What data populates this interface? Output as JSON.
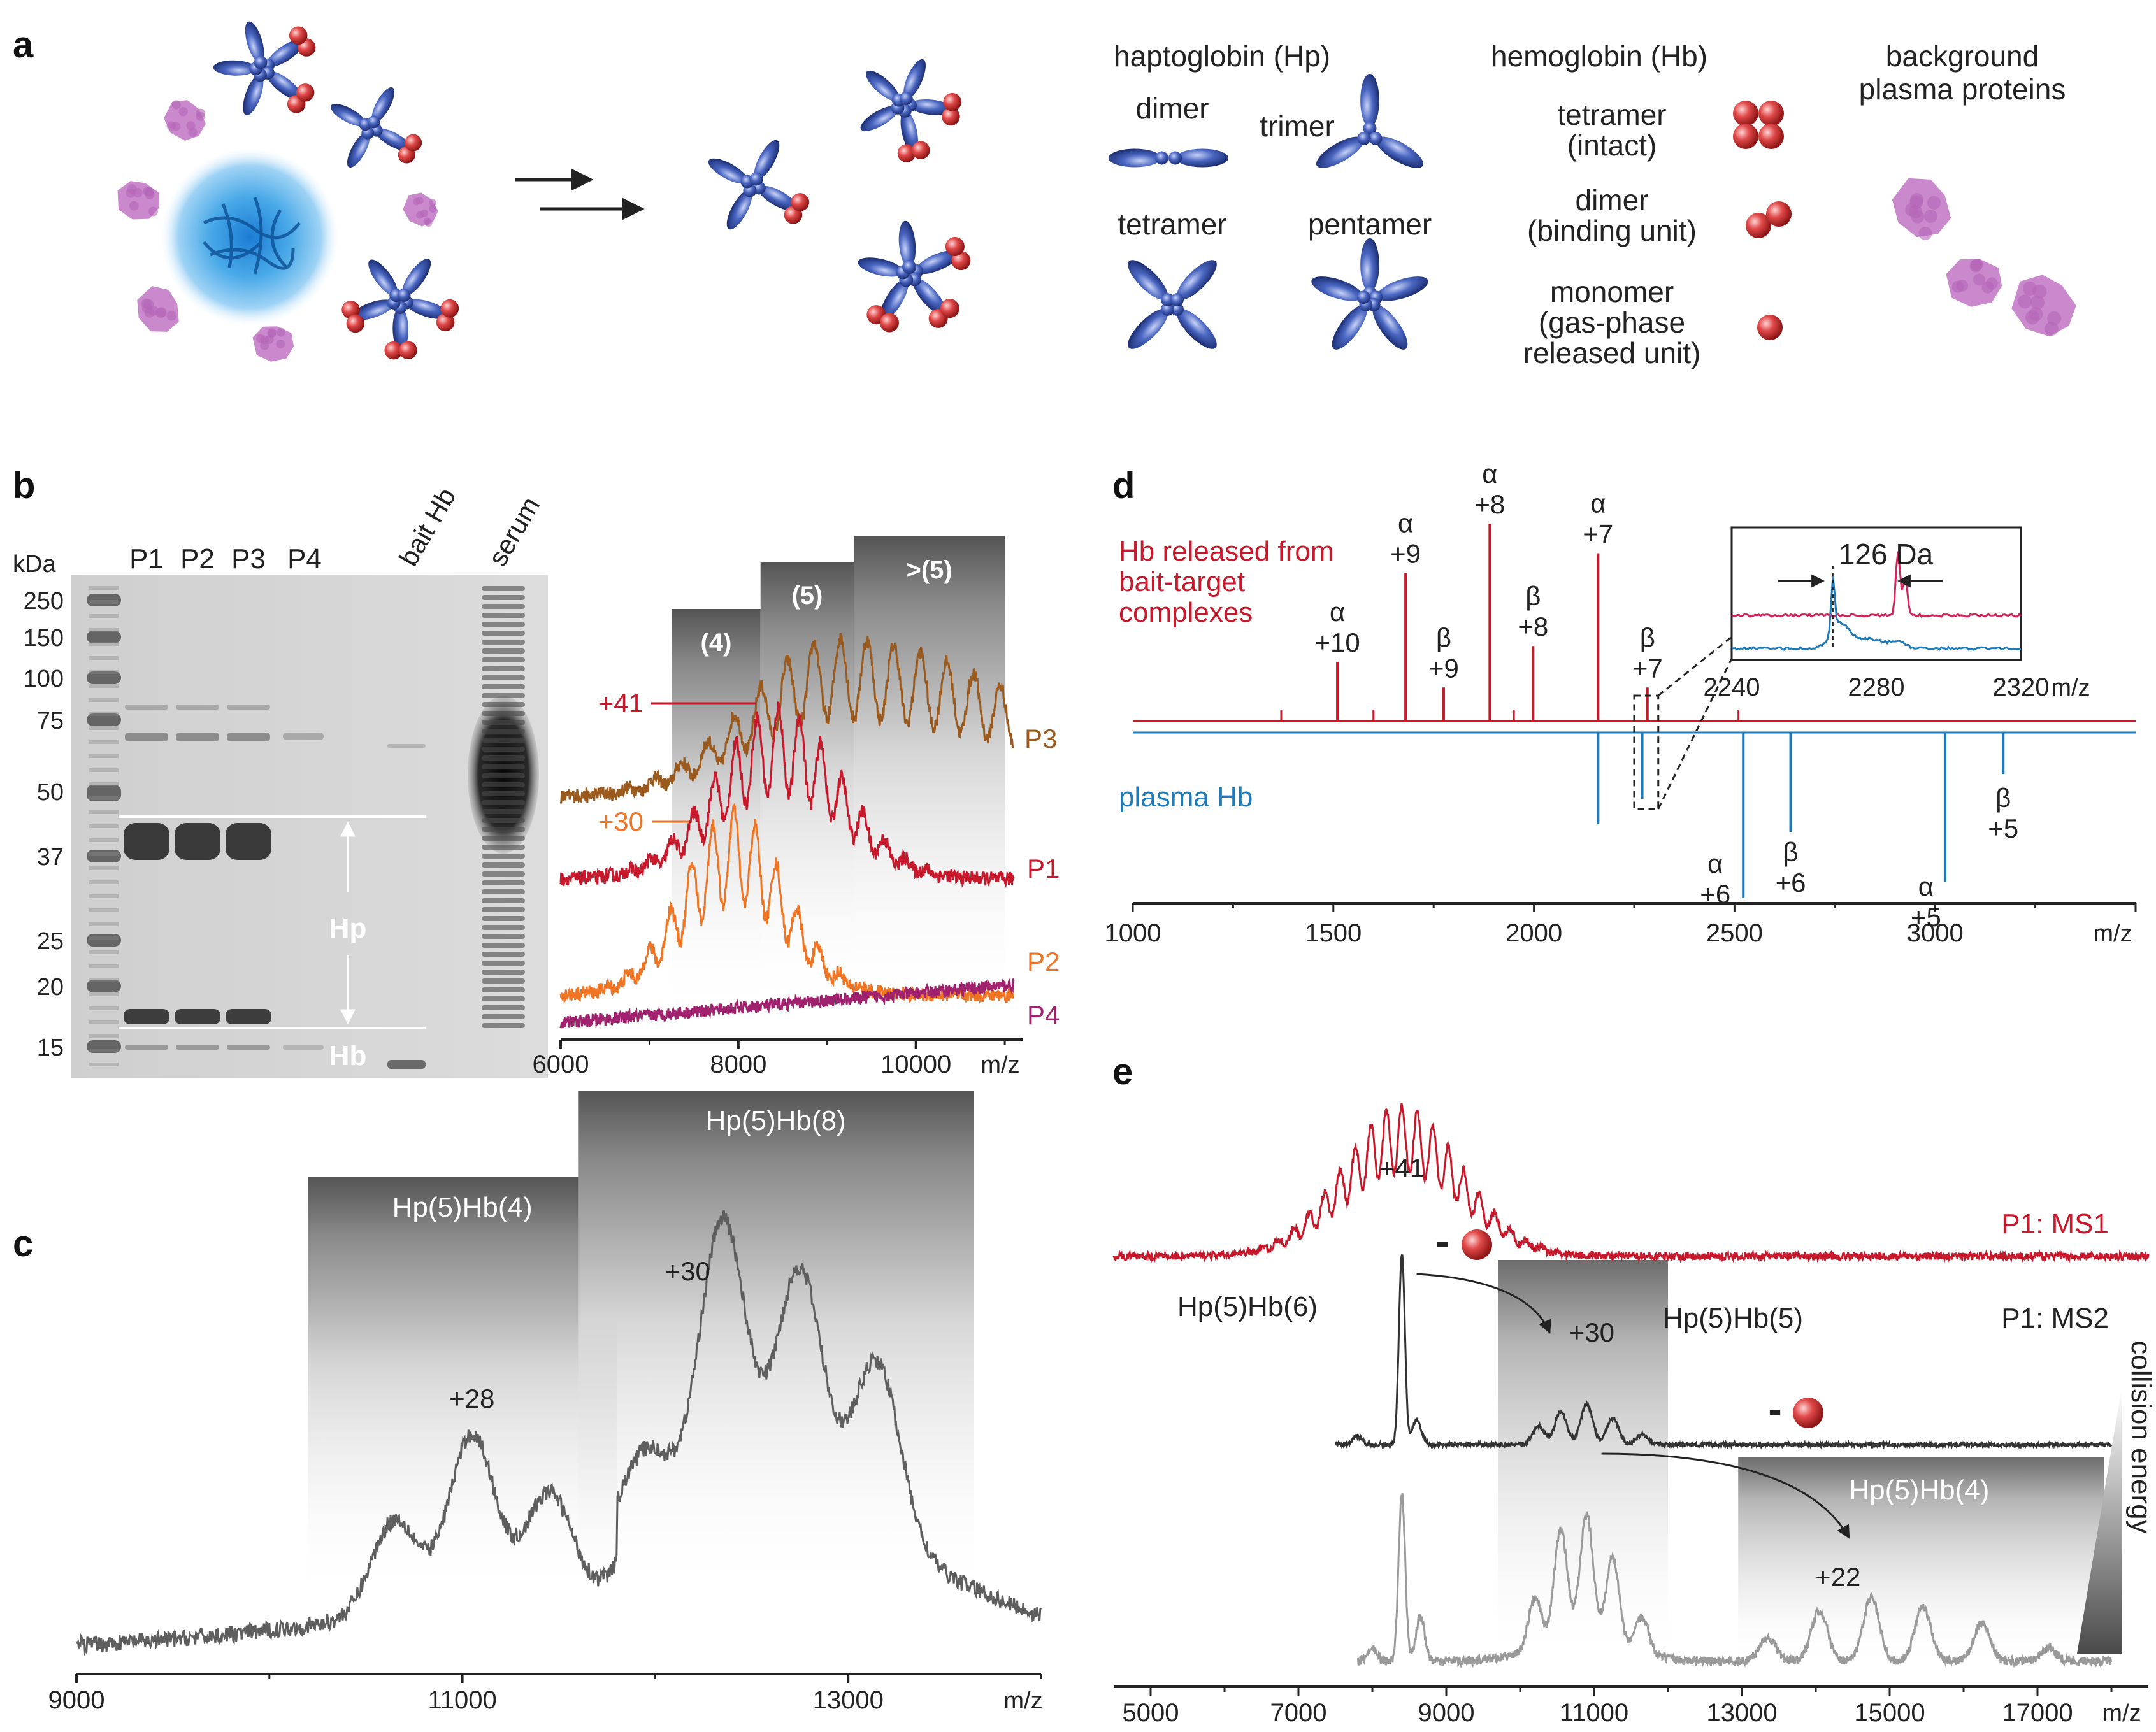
{
  "panel_letters": {
    "a": "a",
    "b": "b",
    "c": "c",
    "d": "d",
    "e": "e"
  },
  "panel_a": {
    "hp_header": "haptoglobin (Hp)",
    "hb_header": "hemoglobin (Hb)",
    "bg_header": [
      "background",
      "plasma proteins"
    ],
    "dimer": "dimer",
    "trimer": "trimer",
    "tetramer": "tetramer",
    "pentamer": "pentamer",
    "hb_tetramer": [
      "tetramer",
      "(intact)"
    ],
    "hb_dimer": [
      "dimer",
      "(binding unit)"
    ],
    "hb_monomer": [
      "monomer",
      "(gas-phase",
      "released unit)"
    ]
  },
  "gel": {
    "unit": "kDa",
    "markers": [
      "250",
      "150",
      "100",
      "75",
      "50",
      "37",
      "25",
      "20",
      "15"
    ],
    "lanes": [
      "P1",
      "P2",
      "P3",
      "P4",
      "bait Hb",
      "serum"
    ],
    "hp_label": "Hp",
    "hb_label": "Hb"
  },
  "colors": {
    "P1": "#c8182b",
    "P2": "#ef7424",
    "P3": "#9a5a1e",
    "P4": "#a0226e",
    "released": "#c8182b",
    "plasma": "#1f7ab8",
    "gray": "#666666",
    "ms2": "#333333",
    "hp": "#2f4a9e",
    "hb": "#d23a3a",
    "bg": "#c57cc8"
  },
  "chart_data": [
    {
      "id": "b_right",
      "type": "line",
      "xlabel": "m/z",
      "xlim": [
        6000,
        11200
      ],
      "xticks": [
        6000,
        8000,
        10000
      ],
      "series": [
        {
          "name": "P3",
          "peak_center": 9200,
          "label_offset": "+41"
        },
        {
          "name": "P1",
          "peak_center": 8500
        },
        {
          "name": "P2",
          "peak_center": 8000
        },
        {
          "name": "P4"
        }
      ],
      "annotations": [
        "+41",
        "+30"
      ],
      "regions": [
        {
          "label": "(4)",
          "x": [
            7250,
            8250
          ]
        },
        {
          "label": "(5)",
          "x": [
            8250,
            9300
          ]
        },
        {
          "label": ">(5)",
          "x": [
            9300,
            11000
          ]
        }
      ]
    },
    {
      "id": "c",
      "type": "line",
      "xlabel": "m/z",
      "xlim": [
        9000,
        14000
      ],
      "xticks": [
        9000,
        11000,
        13000
      ],
      "regions": [
        {
          "label": "Hp(5)Hb(4)",
          "x": [
            10200,
            11800
          ]
        },
        {
          "label": "Hp(5)Hb(8)",
          "x": [
            11600,
            13650
          ]
        }
      ],
      "annotations": [
        {
          "text": "+28",
          "x": 11050
        },
        {
          "text": "+30",
          "x": 12300
        }
      ],
      "peaks": [
        10650,
        11050,
        11450,
        11950,
        12350,
        12750,
        13150
      ]
    },
    {
      "id": "d",
      "type": "bar",
      "xlabel": "m/z",
      "xlim": [
        1000,
        3500
      ],
      "xticks": [
        1000,
        1500,
        2000,
        2500,
        3000
      ],
      "series": [
        {
          "name": "Hb released from bait-target complexes",
          "peaks": [
            {
              "x": 1510,
              "h": 0.3,
              "label": [
                "α",
                "+10"
              ]
            },
            {
              "x": 1680,
              "h": 0.75,
              "label": [
                "α",
                "+9"
              ]
            },
            {
              "x": 1775,
              "h": 0.17,
              "label": [
                "β",
                "+9"
              ]
            },
            {
              "x": 1890,
              "h": 1.0,
              "label": [
                "α",
                "+8"
              ]
            },
            {
              "x": 1998,
              "h": 0.38,
              "label": [
                "β",
                "+8"
              ]
            },
            {
              "x": 2160,
              "h": 0.85,
              "label": [
                "α",
                "+7"
              ]
            },
            {
              "x": 2283,
              "h": 0.17,
              "label": [
                "β",
                "+7"
              ]
            }
          ]
        },
        {
          "name": "plasma Hb",
          "peaks": [
            {
              "x": 2160,
              "h": 0.55
            },
            {
              "x": 2270,
              "h": 0.4
            },
            {
              "x": 2522,
              "h": 1.0,
              "label": [
                "α",
                "+6"
              ]
            },
            {
              "x": 2640,
              "h": 0.6,
              "label": [
                "β",
                "+6"
              ]
            },
            {
              "x": 3025,
              "h": 0.9,
              "label": [
                "α",
                "+5"
              ]
            },
            {
              "x": 3170,
              "h": 0.25,
              "label": [
                "β",
                "+5"
              ]
            }
          ]
        }
      ],
      "inset": {
        "xlim": [
          2240,
          2320
        ],
        "xticks": [
          2240,
          2280,
          2320
        ],
        "xlabel": "m/z",
        "annotation": "126 Da"
      }
    },
    {
      "id": "e",
      "type": "line",
      "xlabel": "m/z",
      "xlim": [
        4500,
        18500
      ],
      "xticks": [
        5000,
        7000,
        9000,
        11000,
        13000,
        15000,
        17000
      ],
      "series": [
        {
          "name": "P1: MS1"
        },
        {
          "name": "P1: MS2"
        }
      ],
      "labels": [
        "Hp(5)Hb(6)",
        "Hp(5)Hb(5)",
        "Hp(5)Hb(4)",
        "collision energy"
      ],
      "annotations": [
        {
          "text": "+41",
          "x": 8400
        },
        {
          "text": "+30",
          "x": 10900
        },
        {
          "text": "+22",
          "x": 14300
        }
      ],
      "minus": "-"
    }
  ]
}
